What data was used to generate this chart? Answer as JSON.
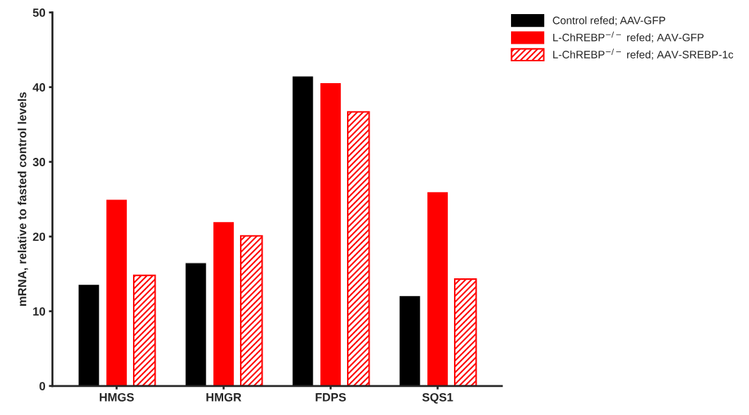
{
  "chart_data": {
    "type": "bar",
    "ylabel": "mRNA, relative to fasted control levels",
    "categories": [
      "HMGS",
      "HMGR",
      "FDPS",
      "SQS1"
    ],
    "series": [
      {
        "name": "Control refed; AAV-GFP",
        "color": "#000000",
        "values": [
          13.6,
          16.5,
          41.5,
          12.1
        ]
      },
      {
        "name": "L-ChREBP$^{−/−}$ refed; AAV-GFP",
        "color": "#ff0000",
        "values": [
          25.0,
          22.0,
          40.6,
          26.0
        ]
      },
      {
        "name": "L-ChREBP$^{−/−}$ refed; AAV-SREBP-1c",
        "color": "#ff0000",
        "values": [
          14.8,
          20.1,
          36.7,
          14.3
        ]
      }
    ],
    "ylim": [
      0,
      50
    ],
    "yticks": [
      0,
      10,
      20,
      30,
      40,
      50
    ],
    "grid": false,
    "legend": "top right"
  }
}
